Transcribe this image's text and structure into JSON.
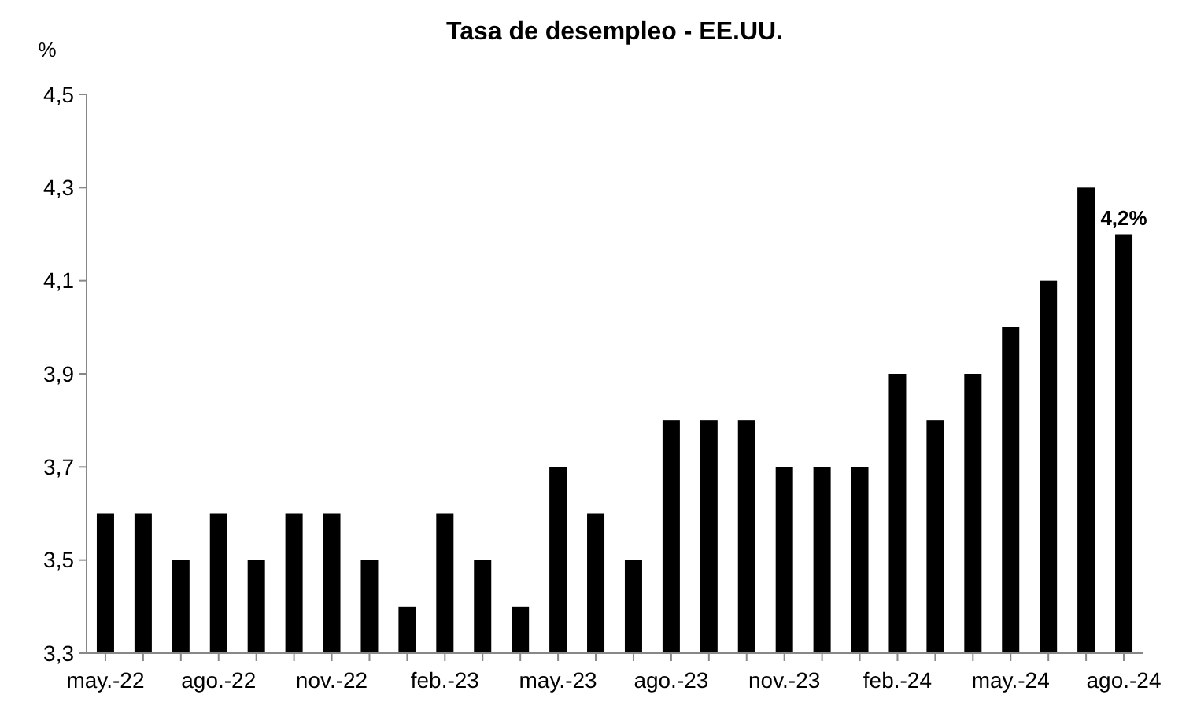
{
  "chart_data": {
    "type": "bar",
    "title": "Tasa de desempleo - EE.UU.",
    "ylabel": "%",
    "categories": [
      "may.-22",
      null,
      null,
      "ago.-22",
      null,
      null,
      "nov.-22",
      null,
      null,
      "feb.-23",
      null,
      null,
      "may.-23",
      null,
      null,
      "ago.-23",
      null,
      null,
      "nov.-23",
      null,
      null,
      "feb.-24",
      null,
      null,
      "may.-24",
      null,
      null,
      "ago.-24"
    ],
    "values": [
      3.6,
      3.6,
      3.5,
      3.6,
      3.5,
      3.6,
      3.6,
      3.5,
      3.4,
      3.6,
      3.5,
      3.4,
      3.7,
      3.6,
      3.5,
      3.8,
      3.8,
      3.8,
      3.7,
      3.7,
      3.7,
      3.9,
      3.8,
      3.9,
      4.0,
      4.1,
      4.3,
      4.2
    ],
    "value_labels": [
      null,
      null,
      null,
      null,
      null,
      null,
      null,
      null,
      null,
      null,
      null,
      null,
      null,
      null,
      null,
      null,
      null,
      null,
      null,
      null,
      null,
      null,
      null,
      null,
      null,
      null,
      null,
      "4,2%"
    ],
    "color": "#000000",
    "ylim": [
      3.3,
      4.5
    ],
    "yticks": [
      {
        "value": 3.3,
        "label": "3,3"
      },
      {
        "value": 3.5,
        "label": "3,5"
      },
      {
        "value": 3.7,
        "label": "3,7"
      },
      {
        "value": 3.9,
        "label": "3,9"
      },
      {
        "value": 4.1,
        "label": "4,1"
      },
      {
        "value": 4.3,
        "label": "4,3"
      },
      {
        "value": 4.5,
        "label": "4,5"
      }
    ]
  }
}
